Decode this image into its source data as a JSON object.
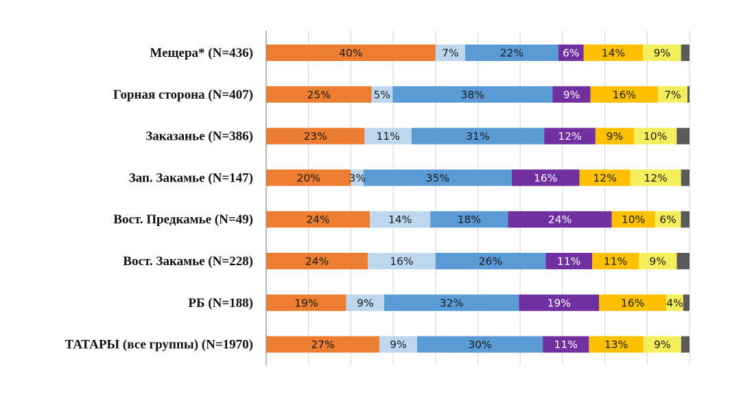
{
  "chart_data": {
    "type": "bar",
    "orientation": "horizontal",
    "stacked": true,
    "percent": true,
    "title": "",
    "xlabel": "",
    "ylabel": "",
    "xlim": [
      0,
      100
    ],
    "grid": true,
    "legend": "none",
    "categories": [
      "Мещера* (N=436)",
      "Горная сторона (N=407)",
      "Заказанье (N=386)",
      "Зап. Закамье (N=147)",
      "Вост. Предкамье (N=49)",
      "Вост. Закамье (N=228)",
      "РБ (N=188)",
      "ТАТАРЫ (все группы) (N=1970)"
    ],
    "series": [
      {
        "name": "series-1",
        "color": "#ED7D31",
        "values": [
          40,
          25,
          23,
          20,
          24,
          24,
          19,
          27
        ],
        "labels": [
          "40%",
          "25%",
          "23%",
          "20%",
          "24%",
          "24%",
          "19%",
          "27%"
        ]
      },
      {
        "name": "series-2",
        "color": "#BDD7EE",
        "values": [
          7,
          5,
          11,
          3,
          14,
          16,
          9,
          9
        ],
        "labels": [
          "7%",
          "5%",
          "11%",
          "3%",
          "14%",
          "16%",
          "9%",
          "9%"
        ]
      },
      {
        "name": "series-3",
        "color": "#5B9BD5",
        "values": [
          22,
          38,
          31,
          35,
          18,
          26,
          32,
          30
        ],
        "labels": [
          "22%",
          "38%",
          "31%",
          "35%",
          "18%",
          "26%",
          "32%",
          "30%"
        ]
      },
      {
        "name": "series-4",
        "color": "#7030A0",
        "values": [
          6,
          9,
          12,
          16,
          24,
          11,
          19,
          11
        ],
        "labels": [
          "6%",
          "9%",
          "12%",
          "16%",
          "24%",
          "11%",
          "19%",
          "11%"
        ]
      },
      {
        "name": "series-5",
        "color": "#FFC000",
        "values": [
          14,
          16,
          9,
          12,
          10,
          11,
          16,
          13
        ],
        "labels": [
          "14%",
          "16%",
          "9%",
          "12%",
          "10%",
          "11%",
          "16%",
          "13%"
        ]
      },
      {
        "name": "series-6",
        "color": "#F4EE5C",
        "values": [
          9,
          7,
          10,
          12,
          6,
          9,
          4,
          9
        ],
        "labels": [
          "9%",
          "7%",
          "10%",
          "12%",
          "6%",
          "9%",
          "4%",
          "9%"
        ]
      },
      {
        "name": "series-7",
        "color": "#5A5A5A",
        "values": [
          2,
          0.5,
          3,
          2,
          2,
          3,
          1.5,
          2
        ],
        "labels": [
          "",
          "",
          "",
          "",
          "",
          "",
          "",
          ""
        ]
      }
    ]
  }
}
